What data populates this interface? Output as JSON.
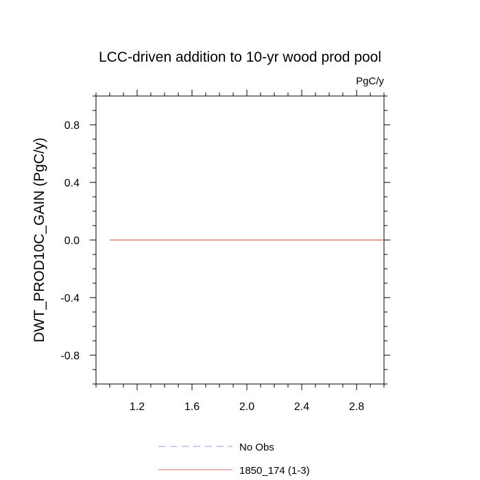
{
  "chart_data": {
    "type": "line",
    "title": "LCC-driven addition to 10-yr wood prod pool",
    "units": "PgC/y",
    "xlabel": "",
    "ylabel": "DWT_PROD10C_GAIN  (PgC/y)",
    "xlim": [
      0.9,
      3.0
    ],
    "ylim": [
      -1.0,
      1.0
    ],
    "x_ticks": [
      1.2,
      1.6,
      2.0,
      2.4,
      2.8
    ],
    "x_tick_labels": [
      "1.2",
      "1.6",
      "2.0",
      "2.4",
      "2.8"
    ],
    "y_ticks": [
      0.8,
      0.4,
      0.0,
      -0.4,
      -0.8
    ],
    "y_tick_labels": [
      "0.8",
      "0.4",
      "0.0",
      "-0.4",
      "-0.8"
    ],
    "x_minor_step": 0.1,
    "y_minor_step": 0.1,
    "grid": false,
    "legend_position": "bottom-center",
    "series": [
      {
        "name": "No Obs",
        "style": "dashed",
        "color": "#9a9ae6",
        "x": [],
        "y": []
      },
      {
        "name": "1850_174 (1-3)",
        "style": "solid",
        "color": "#e06666",
        "x": [
          1.0,
          3.0
        ],
        "y": [
          0.0,
          0.0
        ]
      }
    ]
  }
}
